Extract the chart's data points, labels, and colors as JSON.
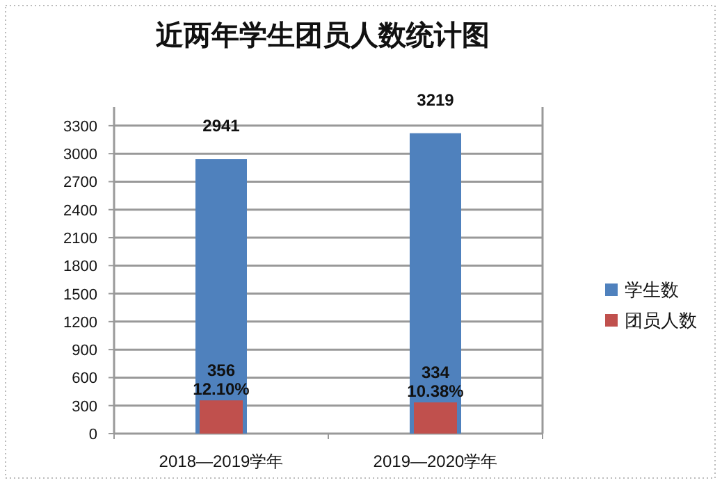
{
  "chart_data": {
    "type": "bar",
    "title": "近两年学生团员人数统计图",
    "categories": [
      "2018—2019学年",
      "2019—2020学年"
    ],
    "series": [
      {
        "name": "学生数",
        "color": "#4f81bd",
        "values": [
          2941,
          3219
        ],
        "value_labels": [
          "2941",
          "3219"
        ]
      },
      {
        "name": "团员人数",
        "color": "#c0504d",
        "values": [
          356,
          334
        ],
        "value_labels": [
          "356\n12.10%",
          "334\n10.38%"
        ]
      }
    ],
    "ylim": [
      0,
      3500
    ],
    "yticks": [
      0,
      300,
      600,
      900,
      1200,
      1500,
      1800,
      2100,
      2400,
      2700,
      3000,
      3300
    ],
    "grid": "y",
    "legend": "right"
  }
}
